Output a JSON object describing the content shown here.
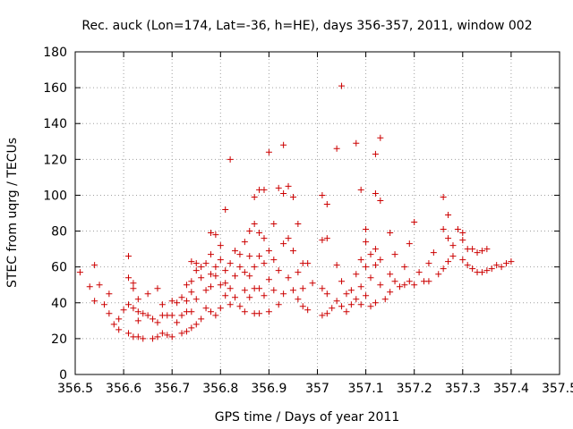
{
  "chart_data": {
    "type": "scatter",
    "title": "Rec. auck (Lon=174, Lat=-36, h=HE), days 356-357, 2011, window 002",
    "xlabel": "GPS time / Days of year 2011",
    "ylabel": "STEC from uqrg / TECUs",
    "xlim": [
      356.5,
      357.5
    ],
    "ylim": [
      0,
      180
    ],
    "xticks": [
      "356.5",
      "356.6",
      "356.7",
      "356.8",
      "356.9",
      "357",
      "357.1",
      "357.2",
      "357.3",
      "357.4",
      "357.5"
    ],
    "yticks": [
      "0",
      "20",
      "40",
      "60",
      "80",
      "100",
      "120",
      "140",
      "160",
      "180"
    ],
    "grid": true,
    "marker": "+",
    "color": "#cc0000",
    "points": [
      [
        356.51,
        57
      ],
      [
        356.53,
        49
      ],
      [
        356.54,
        61
      ],
      [
        356.54,
        41
      ],
      [
        356.55,
        50
      ],
      [
        356.56,
        39
      ],
      [
        356.57,
        45
      ],
      [
        356.57,
        34
      ],
      [
        356.58,
        28
      ],
      [
        356.59,
        31
      ],
      [
        356.59,
        25
      ],
      [
        356.6,
        36
      ],
      [
        356.61,
        66
      ],
      [
        356.61,
        54
      ],
      [
        356.61,
        39
      ],
      [
        356.61,
        23
      ],
      [
        356.62,
        51
      ],
      [
        356.62,
        48
      ],
      [
        356.62,
        37
      ],
      [
        356.62,
        21
      ],
      [
        356.63,
        42
      ],
      [
        356.63,
        35
      ],
      [
        356.63,
        30
      ],
      [
        356.63,
        21
      ],
      [
        356.64,
        34
      ],
      [
        356.64,
        20
      ],
      [
        356.65,
        45
      ],
      [
        356.65,
        33
      ],
      [
        356.66,
        31
      ],
      [
        356.66,
        20
      ],
      [
        356.67,
        48
      ],
      [
        356.67,
        29
      ],
      [
        356.67,
        21
      ],
      [
        356.68,
        39
      ],
      [
        356.68,
        33
      ],
      [
        356.68,
        23
      ],
      [
        356.69,
        33
      ],
      [
        356.69,
        22
      ],
      [
        356.7,
        41
      ],
      [
        356.7,
        33
      ],
      [
        356.7,
        21
      ],
      [
        356.71,
        40
      ],
      [
        356.71,
        29
      ],
      [
        356.72,
        43
      ],
      [
        356.72,
        33
      ],
      [
        356.72,
        23
      ],
      [
        356.73,
        50
      ],
      [
        356.73,
        41
      ],
      [
        356.73,
        35
      ],
      [
        356.73,
        24
      ],
      [
        356.74,
        63
      ],
      [
        356.74,
        52
      ],
      [
        356.74,
        46
      ],
      [
        356.74,
        35
      ],
      [
        356.74,
        26
      ],
      [
        356.75,
        62
      ],
      [
        356.75,
        58
      ],
      [
        356.75,
        42
      ],
      [
        356.75,
        28
      ],
      [
        356.76,
        54
      ],
      [
        356.76,
        60
      ],
      [
        356.76,
        31
      ],
      [
        356.77,
        62
      ],
      [
        356.77,
        47
      ],
      [
        356.77,
        37
      ],
      [
        356.78,
        79
      ],
      [
        356.78,
        67
      ],
      [
        356.78,
        56
      ],
      [
        356.78,
        49
      ],
      [
        356.78,
        35
      ],
      [
        356.79,
        78
      ],
      [
        356.79,
        60
      ],
      [
        356.79,
        55
      ],
      [
        356.79,
        33
      ],
      [
        356.8,
        72
      ],
      [
        356.8,
        64
      ],
      [
        356.8,
        50
      ],
      [
        356.8,
        37
      ],
      [
        356.81,
        92
      ],
      [
        356.81,
        58
      ],
      [
        356.81,
        51
      ],
      [
        356.81,
        44
      ],
      [
        356.82,
        120
      ],
      [
        356.82,
        62
      ],
      [
        356.82,
        48
      ],
      [
        356.82,
        39
      ],
      [
        356.83,
        69
      ],
      [
        356.83,
        55
      ],
      [
        356.83,
        43
      ],
      [
        356.84,
        67
      ],
      [
        356.84,
        60
      ],
      [
        356.84,
        38
      ],
      [
        356.85,
        74
      ],
      [
        356.85,
        57
      ],
      [
        356.85,
        47
      ],
      [
        356.85,
        35
      ],
      [
        356.86,
        80
      ],
      [
        356.86,
        66
      ],
      [
        356.86,
        55
      ],
      [
        356.86,
        43
      ],
      [
        356.87,
        99
      ],
      [
        356.87,
        84
      ],
      [
        356.87,
        60
      ],
      [
        356.87,
        48
      ],
      [
        356.87,
        34
      ],
      [
        356.88,
        103
      ],
      [
        356.88,
        79
      ],
      [
        356.88,
        66
      ],
      [
        356.88,
        48
      ],
      [
        356.88,
        34
      ],
      [
        356.89,
        103
      ],
      [
        356.89,
        76
      ],
      [
        356.89,
        62
      ],
      [
        356.89,
        44
      ],
      [
        356.9,
        124
      ],
      [
        356.9,
        69
      ],
      [
        356.9,
        53
      ],
      [
        356.9,
        35
      ],
      [
        356.91,
        84
      ],
      [
        356.91,
        64
      ],
      [
        356.91,
        47
      ],
      [
        356.92,
        104
      ],
      [
        356.92,
        58
      ],
      [
        356.92,
        39
      ],
      [
        356.93,
        128
      ],
      [
        356.93,
        101
      ],
      [
        356.93,
        73
      ],
      [
        356.93,
        45
      ],
      [
        356.94,
        105
      ],
      [
        356.94,
        76
      ],
      [
        356.94,
        54
      ],
      [
        356.95,
        99
      ],
      [
        356.95,
        69
      ],
      [
        356.95,
        47
      ],
      [
        356.96,
        84
      ],
      [
        356.96,
        57
      ],
      [
        356.96,
        42
      ],
      [
        356.97,
        62
      ],
      [
        356.97,
        48
      ],
      [
        356.97,
        38
      ],
      [
        356.98,
        62
      ],
      [
        356.98,
        36
      ],
      [
        356.99,
        51
      ],
      [
        357.01,
        100
      ],
      [
        357.01,
        75
      ],
      [
        357.01,
        48
      ],
      [
        357.01,
        33
      ],
      [
        357.02,
        95
      ],
      [
        357.02,
        76
      ],
      [
        357.02,
        45
      ],
      [
        357.02,
        34
      ],
      [
        357.03,
        37
      ],
      [
        357.04,
        126
      ],
      [
        357.04,
        61
      ],
      [
        357.04,
        41
      ],
      [
        357.05,
        161
      ],
      [
        357.05,
        52
      ],
      [
        357.05,
        38
      ],
      [
        357.06,
        45
      ],
      [
        357.06,
        35
      ],
      [
        357.07,
        47
      ],
      [
        357.07,
        39
      ],
      [
        357.08,
        129
      ],
      [
        357.08,
        56
      ],
      [
        357.08,
        42
      ],
      [
        357.09,
        103
      ],
      [
        357.09,
        64
      ],
      [
        357.09,
        49
      ],
      [
        357.09,
        39
      ],
      [
        357.1,
        81
      ],
      [
        357.1,
        74
      ],
      [
        357.1,
        60
      ],
      [
        357.1,
        44
      ],
      [
        357.11,
        67
      ],
      [
        357.11,
        54
      ],
      [
        357.11,
        38
      ],
      [
        357.12,
        123
      ],
      [
        357.12,
        101
      ],
      [
        357.12,
        70
      ],
      [
        357.12,
        61
      ],
      [
        357.12,
        40
      ],
      [
        357.13,
        132
      ],
      [
        357.13,
        97
      ],
      [
        357.13,
        64
      ],
      [
        357.13,
        50
      ],
      [
        357.14,
        42
      ],
      [
        357.15,
        79
      ],
      [
        357.15,
        56
      ],
      [
        357.15,
        46
      ],
      [
        357.16,
        67
      ],
      [
        357.16,
        52
      ],
      [
        357.17,
        49
      ],
      [
        357.18,
        60
      ],
      [
        357.18,
        50
      ],
      [
        357.19,
        73
      ],
      [
        357.19,
        52
      ],
      [
        357.2,
        85
      ],
      [
        357.2,
        50
      ],
      [
        357.21,
        57
      ],
      [
        357.22,
        52
      ],
      [
        357.23,
        62
      ],
      [
        357.23,
        52
      ],
      [
        357.24,
        68
      ],
      [
        357.25,
        56
      ],
      [
        357.26,
        99
      ],
      [
        357.26,
        81
      ],
      [
        357.26,
        59
      ],
      [
        357.27,
        89
      ],
      [
        357.27,
        76
      ],
      [
        357.27,
        63
      ],
      [
        357.28,
        72
      ],
      [
        357.28,
        66
      ],
      [
        357.29,
        81
      ],
      [
        357.3,
        79
      ],
      [
        357.3,
        75
      ],
      [
        357.3,
        64
      ],
      [
        357.31,
        70
      ],
      [
        357.31,
        61
      ],
      [
        357.32,
        70
      ],
      [
        357.32,
        59
      ],
      [
        357.33,
        68
      ],
      [
        357.33,
        57
      ],
      [
        357.34,
        69
      ],
      [
        357.34,
        57
      ],
      [
        357.35,
        70
      ],
      [
        357.35,
        58
      ],
      [
        357.36,
        59
      ],
      [
        357.37,
        61
      ],
      [
        357.38,
        60
      ],
      [
        357.39,
        62
      ],
      [
        357.4,
        63
      ]
    ]
  }
}
